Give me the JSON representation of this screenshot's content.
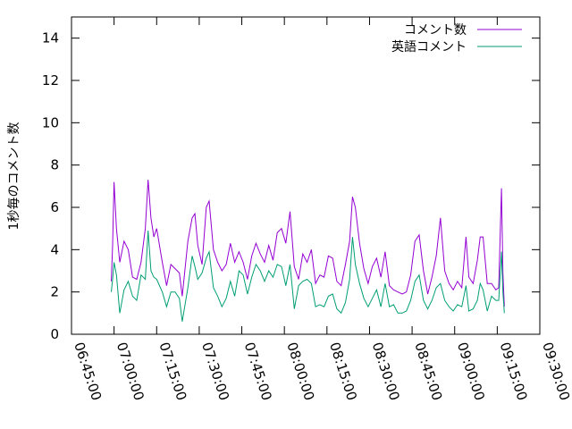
{
  "chart_data": {
    "type": "line",
    "xlabel": "",
    "ylabel": "1秒毎のコメント数",
    "ylim": [
      0,
      15
    ],
    "yticks": [
      0,
      2,
      4,
      6,
      8,
      10,
      12,
      14
    ],
    "xlim": [
      "06:45:00",
      "09:30:00"
    ],
    "xticks": [
      "06:45:00",
      "07:00:00",
      "07:15:00",
      "07:30:00",
      "07:45:00",
      "08:00:00",
      "08:15:00",
      "08:30:00",
      "08:45:00",
      "09:00:00",
      "09:15:00",
      "09:30:00"
    ],
    "grid": false,
    "legend_position": "top-right",
    "series": [
      {
        "name": "コメント数",
        "color": "#9400d3",
        "points": [
          [
            "06:59:00",
            2.5
          ],
          [
            "06:59:30",
            4.2
          ],
          [
            "07:00:00",
            7.2
          ],
          [
            "07:00:50",
            5.0
          ],
          [
            "07:02:00",
            3.4
          ],
          [
            "07:03:30",
            4.4
          ],
          [
            "07:05:00",
            4.0
          ],
          [
            "07:06:30",
            2.7
          ],
          [
            "07:08:00",
            2.6
          ],
          [
            "07:09:30",
            3.4
          ],
          [
            "07:11:00",
            5.0
          ],
          [
            "07:12:00",
            7.3
          ],
          [
            "07:13:00",
            5.5
          ],
          [
            "07:14:00",
            4.6
          ],
          [
            "07:15:00",
            5.0
          ],
          [
            "07:17:00",
            3.4
          ],
          [
            "07:18:30",
            2.3
          ],
          [
            "07:20:00",
            3.3
          ],
          [
            "07:21:30",
            3.1
          ],
          [
            "07:23:00",
            2.9
          ],
          [
            "07:24:00",
            1.8
          ],
          [
            "07:26:00",
            4.4
          ],
          [
            "07:27:30",
            5.5
          ],
          [
            "07:28:30",
            5.7
          ],
          [
            "07:29:30",
            4.2
          ],
          [
            "07:31:00",
            3.3
          ],
          [
            "07:32:30",
            6.0
          ],
          [
            "07:33:30",
            6.3
          ],
          [
            "07:35:00",
            4.0
          ],
          [
            "07:36:30",
            3.4
          ],
          [
            "07:38:00",
            3.0
          ],
          [
            "07:39:30",
            3.3
          ],
          [
            "07:41:00",
            4.3
          ],
          [
            "07:42:30",
            3.4
          ],
          [
            "07:44:00",
            3.9
          ],
          [
            "07:45:30",
            3.4
          ],
          [
            "07:47:00",
            2.6
          ],
          [
            "07:48:30",
            3.7
          ],
          [
            "07:50:00",
            4.3
          ],
          [
            "07:51:30",
            3.8
          ],
          [
            "07:53:00",
            3.4
          ],
          [
            "07:54:30",
            4.2
          ],
          [
            "07:56:00",
            3.5
          ],
          [
            "07:57:30",
            4.8
          ],
          [
            "07:59:00",
            5.0
          ],
          [
            "08:00:30",
            4.3
          ],
          [
            "08:02:00",
            5.8
          ],
          [
            "08:03:30",
            3.2
          ],
          [
            "08:05:00",
            2.6
          ],
          [
            "08:06:30",
            3.8
          ],
          [
            "08:08:00",
            3.4
          ],
          [
            "08:09:30",
            4.0
          ],
          [
            "08:11:00",
            2.4
          ],
          [
            "08:12:30",
            2.8
          ],
          [
            "08:14:00",
            2.7
          ],
          [
            "08:15:30",
            3.7
          ],
          [
            "08:17:00",
            3.6
          ],
          [
            "08:18:30",
            2.5
          ],
          [
            "08:20:00",
            2.3
          ],
          [
            "08:21:30",
            3.3
          ],
          [
            "08:23:00",
            4.4
          ],
          [
            "08:24:00",
            6.5
          ],
          [
            "08:25:00",
            6.0
          ],
          [
            "08:26:30",
            4.3
          ],
          [
            "08:28:00",
            3.1
          ],
          [
            "08:29:30",
            2.4
          ],
          [
            "08:31:00",
            3.2
          ],
          [
            "08:32:30",
            3.6
          ],
          [
            "08:34:00",
            2.7
          ],
          [
            "08:35:30",
            3.9
          ],
          [
            "08:37:00",
            2.3
          ],
          [
            "08:38:30",
            2.1
          ],
          [
            "08:40:00",
            2.0
          ],
          [
            "08:41:30",
            1.9
          ],
          [
            "08:43:00",
            2.0
          ],
          [
            "08:44:30",
            2.8
          ],
          [
            "08:46:00",
            4.4
          ],
          [
            "08:47:30",
            4.7
          ],
          [
            "08:49:00",
            3.0
          ],
          [
            "08:50:30",
            1.9
          ],
          [
            "08:52:00",
            2.7
          ],
          [
            "08:53:30",
            3.7
          ],
          [
            "08:55:00",
            5.5
          ],
          [
            "08:56:30",
            3.0
          ],
          [
            "08:58:00",
            2.4
          ],
          [
            "08:59:30",
            2.1
          ],
          [
            "09:01:00",
            2.5
          ],
          [
            "09:02:30",
            2.2
          ],
          [
            "09:04:00",
            4.6
          ],
          [
            "09:05:00",
            2.7
          ],
          [
            "09:06:30",
            2.4
          ],
          [
            "09:08:00",
            3.5
          ],
          [
            "09:09:00",
            4.6
          ],
          [
            "09:10:00",
            4.6
          ],
          [
            "09:11:30",
            2.4
          ],
          [
            "09:13:00",
            2.4
          ],
          [
            "09:14:30",
            2.1
          ],
          [
            "09:15:30",
            2.2
          ],
          [
            "09:16:30",
            6.9
          ],
          [
            "09:17:00",
            2.9
          ],
          [
            "09:17:30",
            1.3
          ]
        ]
      },
      {
        "name": "英語コメント",
        "color": "#009e73",
        "points": [
          [
            "06:59:00",
            2.0
          ],
          [
            "06:59:30",
            2.6
          ],
          [
            "07:00:00",
            3.4
          ],
          [
            "07:00:50",
            2.8
          ],
          [
            "07:02:00",
            1.0
          ],
          [
            "07:03:30",
            2.1
          ],
          [
            "07:05:00",
            2.5
          ],
          [
            "07:06:30",
            1.8
          ],
          [
            "07:08:00",
            1.6
          ],
          [
            "07:09:30",
            2.8
          ],
          [
            "07:11:00",
            2.6
          ],
          [
            "07:12:00",
            4.9
          ],
          [
            "07:13:00",
            3.0
          ],
          [
            "07:14:00",
            2.7
          ],
          [
            "07:15:00",
            2.6
          ],
          [
            "07:17:00",
            2.0
          ],
          [
            "07:18:30",
            1.3
          ],
          [
            "07:20:00",
            2.0
          ],
          [
            "07:21:30",
            2.0
          ],
          [
            "07:23:00",
            1.7
          ],
          [
            "07:24:00",
            0.6
          ],
          [
            "07:26:00",
            2.2
          ],
          [
            "07:27:30",
            3.7
          ],
          [
            "07:28:30",
            3.2
          ],
          [
            "07:29:30",
            2.6
          ],
          [
            "07:31:00",
            2.9
          ],
          [
            "07:32:30",
            3.6
          ],
          [
            "07:33:30",
            3.9
          ],
          [
            "07:35:00",
            2.2
          ],
          [
            "07:36:30",
            1.8
          ],
          [
            "07:38:00",
            1.3
          ],
          [
            "07:39:30",
            1.7
          ],
          [
            "07:41:00",
            2.5
          ],
          [
            "07:42:30",
            1.8
          ],
          [
            "07:44:00",
            3.0
          ],
          [
            "07:45:30",
            2.8
          ],
          [
            "07:47:00",
            1.9
          ],
          [
            "07:48:30",
            2.7
          ],
          [
            "07:50:00",
            3.3
          ],
          [
            "07:51:30",
            3.0
          ],
          [
            "07:53:00",
            2.5
          ],
          [
            "07:54:30",
            3.0
          ],
          [
            "07:56:00",
            2.7
          ],
          [
            "07:57:30",
            3.3
          ],
          [
            "07:59:00",
            3.2
          ],
          [
            "08:00:30",
            2.3
          ],
          [
            "08:02:00",
            3.3
          ],
          [
            "08:03:30",
            1.2
          ],
          [
            "08:05:00",
            2.3
          ],
          [
            "08:06:30",
            2.5
          ],
          [
            "08:08:00",
            2.6
          ],
          [
            "08:09:30",
            2.4
          ],
          [
            "08:11:00",
            1.3
          ],
          [
            "08:12:30",
            1.4
          ],
          [
            "08:14:00",
            1.3
          ],
          [
            "08:15:30",
            1.8
          ],
          [
            "08:17:00",
            1.9
          ],
          [
            "08:18:30",
            1.2
          ],
          [
            "08:20:00",
            1.0
          ],
          [
            "08:21:30",
            1.5
          ],
          [
            "08:23:00",
            2.6
          ],
          [
            "08:24:00",
            4.6
          ],
          [
            "08:25:00",
            3.3
          ],
          [
            "08:26:30",
            2.4
          ],
          [
            "08:28:00",
            1.7
          ],
          [
            "08:29:30",
            1.3
          ],
          [
            "08:31:00",
            1.7
          ],
          [
            "08:32:30",
            2.1
          ],
          [
            "08:34:00",
            1.3
          ],
          [
            "08:35:30",
            2.4
          ],
          [
            "08:37:00",
            1.3
          ],
          [
            "08:38:30",
            1.4
          ],
          [
            "08:40:00",
            1.0
          ],
          [
            "08:41:30",
            1.0
          ],
          [
            "08:43:00",
            1.1
          ],
          [
            "08:44:30",
            1.6
          ],
          [
            "08:46:00",
            2.5
          ],
          [
            "08:47:30",
            2.8
          ],
          [
            "08:49:00",
            1.6
          ],
          [
            "08:50:30",
            1.2
          ],
          [
            "08:52:00",
            1.6
          ],
          [
            "08:53:30",
            2.2
          ],
          [
            "08:55:00",
            2.4
          ],
          [
            "08:56:30",
            1.6
          ],
          [
            "08:58:00",
            1.3
          ],
          [
            "08:59:30",
            1.1
          ],
          [
            "09:01:00",
            1.4
          ],
          [
            "09:02:30",
            1.3
          ],
          [
            "09:04:00",
            2.3
          ],
          [
            "09:05:00",
            1.1
          ],
          [
            "09:06:30",
            1.2
          ],
          [
            "09:08:00",
            1.6
          ],
          [
            "09:09:00",
            2.4
          ],
          [
            "09:10:00",
            2.1
          ],
          [
            "09:11:30",
            1.1
          ],
          [
            "09:13:00",
            1.8
          ],
          [
            "09:14:30",
            1.6
          ],
          [
            "09:15:30",
            1.6
          ],
          [
            "09:16:30",
            3.9
          ],
          [
            "09:17:00",
            2.0
          ],
          [
            "09:17:30",
            1.0
          ]
        ]
      }
    ]
  }
}
